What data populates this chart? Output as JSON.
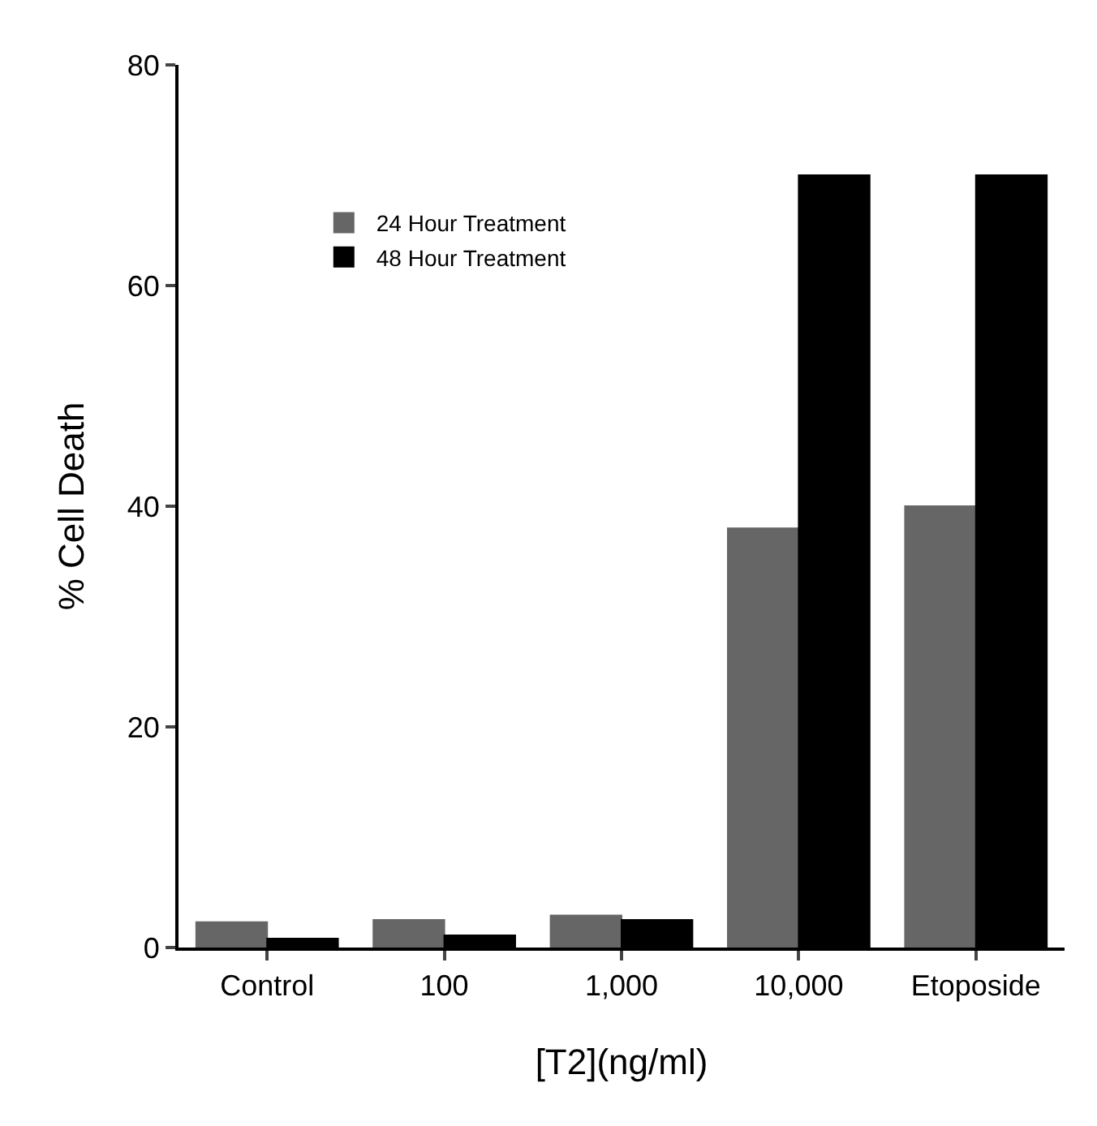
{
  "chart_data": {
    "type": "bar",
    "xlabel": "[T2](ng/ml)",
    "ylabel": "% Cell Death",
    "categories": [
      "Control",
      "100",
      "1,000",
      "10,000",
      "Etoposide"
    ],
    "series": [
      {
        "name": "24 Hour Treatment",
        "color": "#666666",
        "values": [
          2.3,
          2.5,
          2.9,
          38,
          40
        ]
      },
      {
        "name": "48 Hour Treatment",
        "color": "#000000",
        "values": [
          0.8,
          1.1,
          2.5,
          70,
          70
        ]
      }
    ],
    "ylim": [
      0,
      80
    ],
    "yticks": [
      0,
      20,
      40,
      60,
      80
    ],
    "legend": "top left"
  }
}
